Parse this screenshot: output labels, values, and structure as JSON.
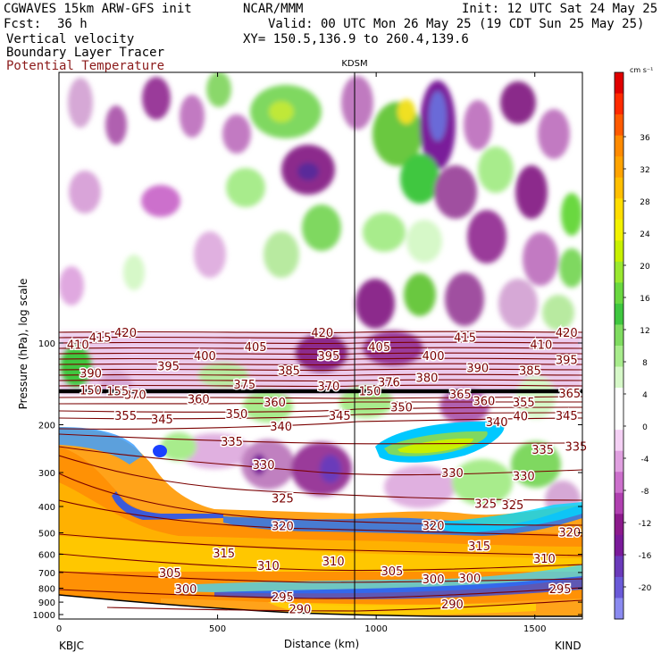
{
  "header": {
    "model": "CGWAVES 15km ARW-GFS init",
    "org": "NCAR/MMM",
    "init": "Init: 12 UTC Sat 24 May 25",
    "fcst_label": "Fcst:",
    "fcst_value": "36 h",
    "valid": "Valid: 00 UTC Mon 26 May 25 (19 CDT Sun 25 May 25)",
    "xy": "XY= 150.5,136.9 to 260.4,139.6"
  },
  "fields": {
    "field1": "Vertical velocity",
    "field2": "Boundary Layer Tracer",
    "field3": "Potential Temperature"
  },
  "colors": {
    "theta": "#7a0000",
    "theta_legend_text": "#8b1a1a"
  },
  "chart_data": {
    "type": "heatmap",
    "ylabel": "Pressure (hPa), log scale",
    "xlabel": "Distance (km)",
    "y_scale": "log",
    "xlim": [
      0,
      1650
    ],
    "x_ticks": [
      0,
      500,
      1000,
      1500
    ],
    "y_ticks": [
      100,
      200,
      300,
      400,
      500,
      600,
      700,
      800,
      900,
      1000
    ],
    "station_left": "KBJC",
    "station_right": "KIND",
    "station_mid": "KDSM",
    "colorbar": {
      "unit": "cm s⁻¹",
      "labels": [
        36,
        32,
        28,
        24,
        20,
        16,
        12,
        8,
        4,
        0,
        -4,
        -8,
        -12,
        -16,
        -20
      ],
      "colors": [
        "#e00000",
        "#ff2a00",
        "#ff5a00",
        "#ff8a00",
        "#ffa300",
        "#ffbf00",
        "#ffdd00",
        "#f2f200",
        "#c8f000",
        "#9ae830",
        "#6ad840",
        "#3fc73f",
        "#7fdc60",
        "#a8ec8c",
        "#d6f8c8",
        "#ffffff",
        "#ffffff",
        "#f4d0f4",
        "#e0a0e0",
        "#cc70cc",
        "#b040b0",
        "#8c1a8c",
        "#7a1a9a",
        "#6a3aba",
        "#6a5ad8",
        "#8a8af0"
      ]
    },
    "theta_labels": [
      {
        "t": "420",
        "x": 210,
        "p": 92
      },
      {
        "t": "420",
        "x": 830,
        "p": 92
      },
      {
        "t": "420",
        "x": 1600,
        "p": 92
      },
      {
        "t": "415",
        "x": 130,
        "p": 96
      },
      {
        "t": "415",
        "x": 1280,
        "p": 96
      },
      {
        "t": "410",
        "x": 60,
        "p": 102
      },
      {
        "t": "410",
        "x": 1520,
        "p": 102
      },
      {
        "t": "405",
        "x": 620,
        "p": 104
      },
      {
        "t": "405",
        "x": 1010,
        "p": 104
      },
      {
        "t": "400",
        "x": 460,
        "p": 112
      },
      {
        "t": "400",
        "x": 1180,
        "p": 112
      },
      {
        "t": "395",
        "x": 345,
        "p": 122
      },
      {
        "t": "395",
        "x": 850,
        "p": 112
      },
      {
        "t": "395",
        "x": 1600,
        "p": 116
      },
      {
        "t": "390",
        "x": 100,
        "p": 130
      },
      {
        "t": "390",
        "x": 1320,
        "p": 124
      },
      {
        "t": "385",
        "x": 725,
        "p": 127
      },
      {
        "t": "385",
        "x": 1485,
        "p": 127
      },
      {
        "t": "380",
        "x": 1160,
        "p": 135
      },
      {
        "t": "375",
        "x": 585,
        "p": 143
      },
      {
        "t": "376",
        "x": 1040,
        "p": 140
      },
      {
        "t": "370",
        "x": 240,
        "p": 156
      },
      {
        "t": "370",
        "x": 850,
        "p": 145
      },
      {
        "t": "365",
        "x": 1265,
        "p": 155
      },
      {
        "t": "365",
        "x": 1610,
        "p": 154
      },
      {
        "t": "360",
        "x": 440,
        "p": 162
      },
      {
        "t": "360",
        "x": 680,
        "p": 166
      },
      {
        "t": "360",
        "x": 1340,
        "p": 164
      },
      {
        "t": "355",
        "x": 210,
        "p": 186
      },
      {
        "t": "355",
        "x": 1465,
        "p": 166
      },
      {
        "t": "350",
        "x": 560,
        "p": 183
      },
      {
        "t": "350",
        "x": 1080,
        "p": 173
      },
      {
        "t": "345",
        "x": 325,
        "p": 192
      },
      {
        "t": "345",
        "x": 885,
        "p": 186
      },
      {
        "t": "345",
        "x": 1600,
        "p": 186
      },
      {
        "t": "340",
        "x": 700,
        "p": 204
      },
      {
        "t": "340",
        "x": 1380,
        "p": 196
      },
      {
        "t": "335",
        "x": 545,
        "p": 232
      },
      {
        "t": "335",
        "x": 1525,
        "p": 248
      },
      {
        "t": "335",
        "x": 1630,
        "p": 242
      },
      {
        "t": "330",
        "x": 645,
        "p": 282
      },
      {
        "t": "330",
        "x": 1240,
        "p": 302
      },
      {
        "t": "330",
        "x": 1465,
        "p": 310
      },
      {
        "t": "325",
        "x": 705,
        "p": 375
      },
      {
        "t": "325",
        "x": 1345,
        "p": 392
      },
      {
        "t": "325",
        "x": 1430,
        "p": 397
      },
      {
        "t": "320",
        "x": 705,
        "p": 475
      },
      {
        "t": "320",
        "x": 1180,
        "p": 472
      },
      {
        "t": "320",
        "x": 1610,
        "p": 500
      },
      {
        "t": "315",
        "x": 520,
        "p": 598
      },
      {
        "t": "315",
        "x": 1325,
        "p": 562
      },
      {
        "t": "310",
        "x": 660,
        "p": 665
      },
      {
        "t": "310",
        "x": 865,
        "p": 640
      },
      {
        "t": "310",
        "x": 1530,
        "p": 625
      },
      {
        "t": "305",
        "x": 350,
        "p": 705
      },
      {
        "t": "305",
        "x": 1050,
        "p": 695
      },
      {
        "t": "300",
        "x": 400,
        "p": 810
      },
      {
        "t": "300",
        "x": 1180,
        "p": 745
      },
      {
        "t": "300",
        "x": 1295,
        "p": 740
      },
      {
        "t": "295",
        "x": 705,
        "p": 865
      },
      {
        "t": "295",
        "x": 1580,
        "p": 810
      },
      {
        "t": "290",
        "x": 760,
        "p": 960
      },
      {
        "t": "290",
        "x": 1240,
        "p": 920
      },
      {
        "t": "150",
        "x": 100,
        "p": 150
      },
      {
        "t": "155",
        "x": 185,
        "p": 151
      },
      {
        "t": "150",
        "x": 980,
        "p": 151
      },
      {
        "t": "40",
        "x": 1455,
        "p": 187
      }
    ]
  }
}
